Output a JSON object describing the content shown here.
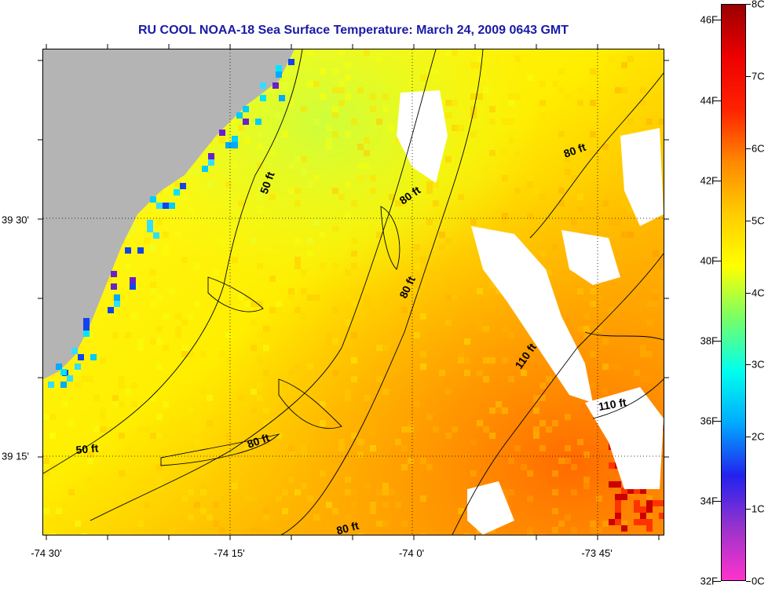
{
  "title": "RU COOL  NOAA-18  Sea Surface Temperature:  March 24, 2009 0643 GMT",
  "map": {
    "x_ticks": [
      {
        "label": "-74 30'",
        "lon": -74.5
      },
      {
        "label": "-74 15'",
        "lon": -74.25
      },
      {
        "label": "-74 0'",
        "lon": -74.0
      },
      {
        "label": "-73 45'",
        "lon": -73.75
      }
    ],
    "y_ticks": [
      {
        "label": "39 30'",
        "lat": 39.5
      },
      {
        "label": "39 15'",
        "lat": 39.25
      }
    ],
    "depth_labels": [
      "50 ft",
      "80 ft",
      "80 ft",
      "80 ft",
      "80 ft",
      "80 ft",
      "110 ft",
      "110 ft",
      "50 ft"
    ],
    "colors": {
      "land": "#b4b4b4",
      "missing": "#ffffff",
      "graticule": "#000000",
      "title": "#1a1aa8"
    }
  },
  "colorbar": {
    "min_F": 32,
    "max_F": 46.4,
    "fahrenheit_labels": [
      "46F",
      "44F",
      "42F",
      "40F",
      "38F",
      "36F",
      "34F",
      "32F"
    ],
    "fahrenheit_values": [
      46,
      44,
      42,
      40,
      38,
      36,
      34,
      32
    ],
    "celsius_labels": [
      "8C",
      "7C",
      "6C",
      "5C",
      "4C",
      "3C",
      "2C",
      "1C",
      "0C"
    ],
    "celsius_values": [
      8,
      7,
      6,
      5,
      4,
      3,
      2,
      1,
      0
    ],
    "gradient_stops": [
      "#ff33cc",
      "#9933cc",
      "#2222ee",
      "#00aaff",
      "#00ffee",
      "#77ff66",
      "#ffff00",
      "#ffcc00",
      "#ff8800",
      "#ff2200",
      "#ee0000",
      "#990000"
    ]
  }
}
